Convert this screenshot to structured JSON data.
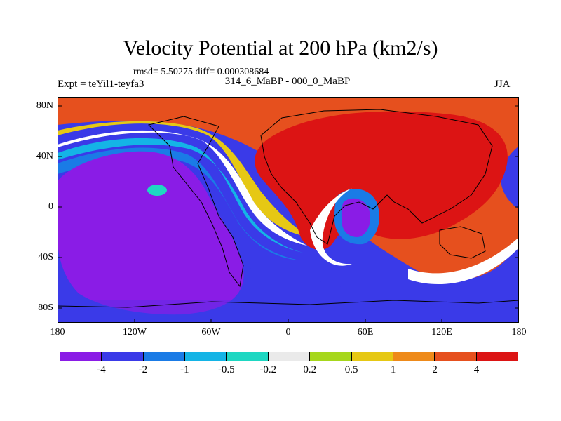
{
  "title": "Velocity Potential at 200 hPa (km2/s)",
  "stats": "rmsd= 5.50275 diff= 0.000308684",
  "experiment": "Expt = teYil1-teyfa3",
  "comparison": "314_6_MaBP - 000_0_MaBP",
  "season": "JJA",
  "map": {
    "lat_ticks": [
      "80N",
      "40N",
      "0",
      "40S",
      "80S"
    ],
    "lon_ticks": [
      "180",
      "120W",
      "60W",
      "0",
      "60E",
      "120E",
      "180"
    ]
  },
  "colorbar": {
    "colors": [
      "#8a1ce6",
      "#3a3ae8",
      "#1a7be6",
      "#14b4e6",
      "#1ed7c2",
      "#eaeaea",
      "#a6d71c",
      "#e6c814",
      "#ee8a1a",
      "#e6501e",
      "#dc1414"
    ],
    "labels": [
      "-4",
      "-2",
      "-1",
      "-0.5",
      "-0.2",
      "0.2",
      "0.5",
      "1",
      "2",
      "4"
    ]
  }
}
